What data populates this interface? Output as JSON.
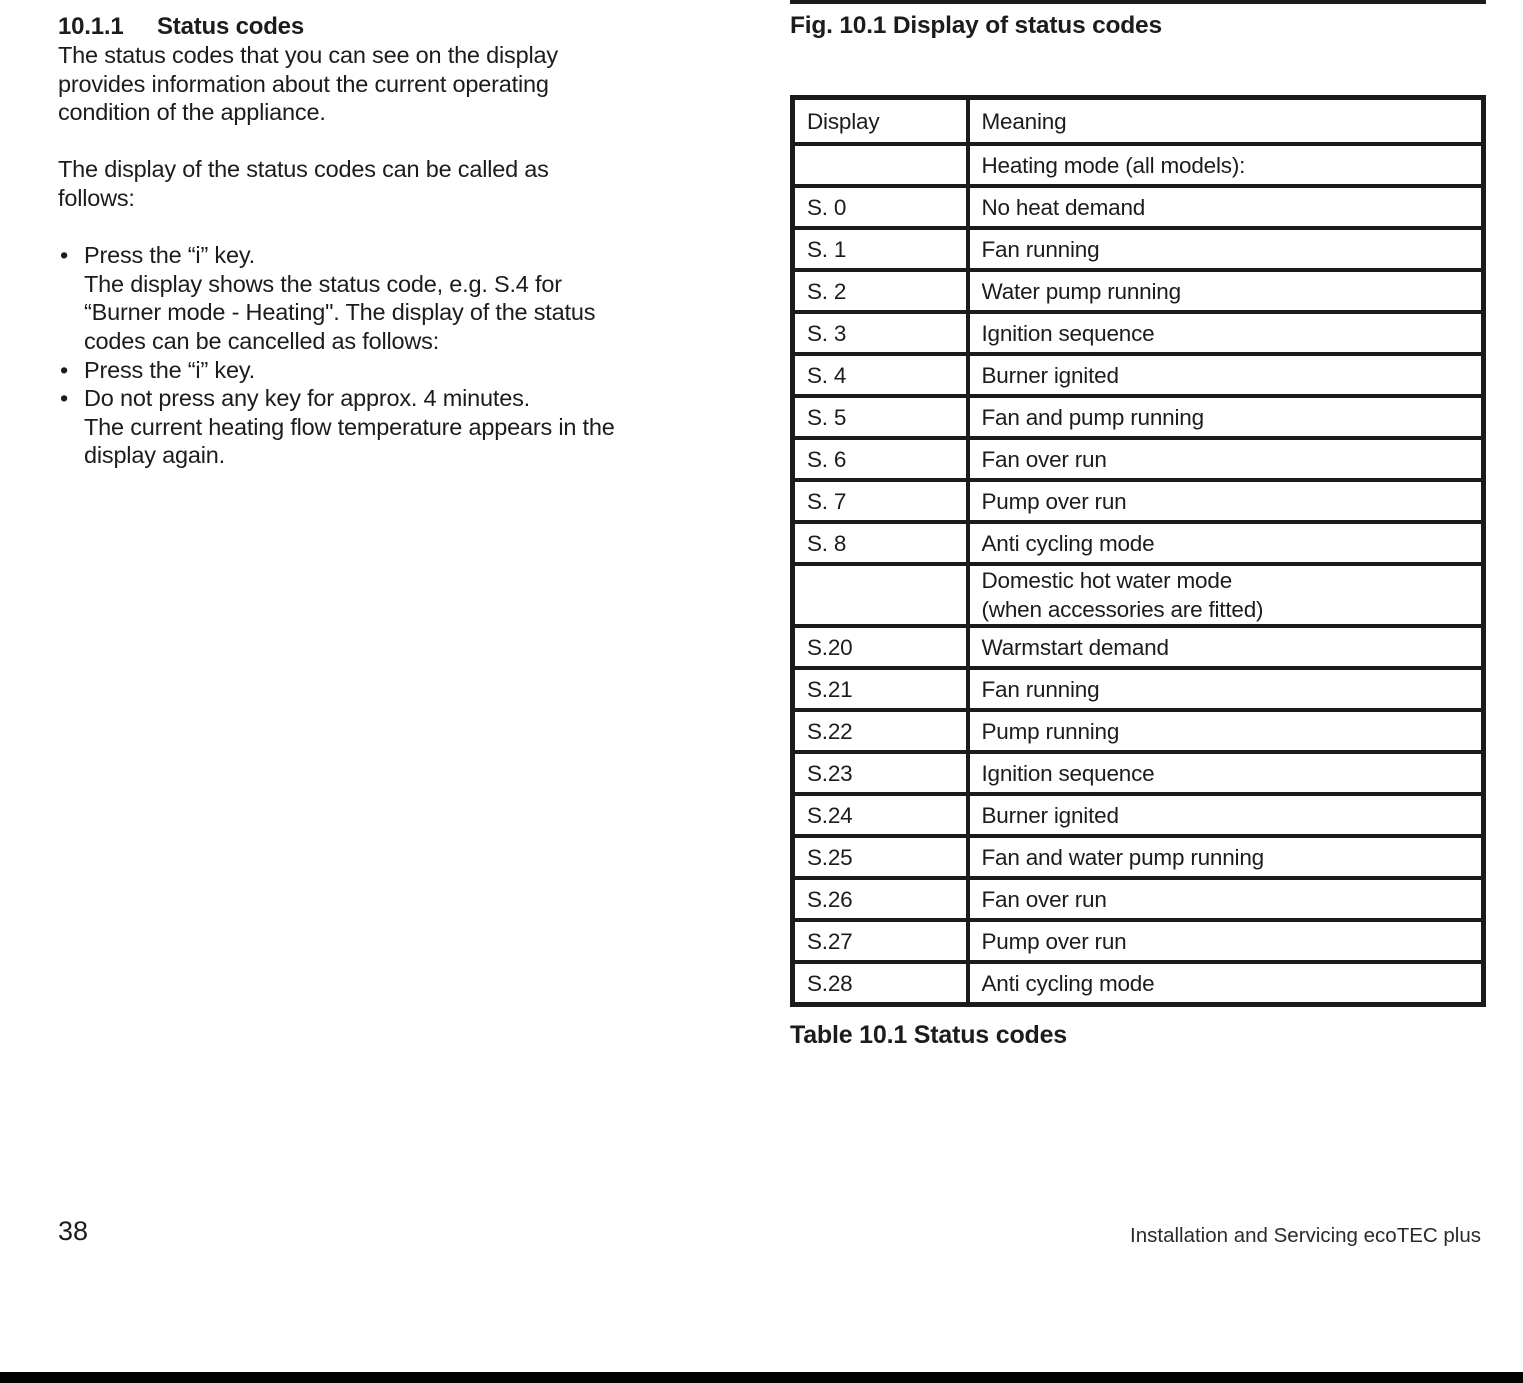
{
  "left_column": {
    "section_number": "10.1.1",
    "section_title": "Status codes",
    "paragraphs": [
      "The status codes that you can see on the display\nprovides information about the current operating\ncondition of the appliance.",
      "The display of the status codes can be called as\nfollows:"
    ],
    "bullets": [
      "Press the “i” key.\nThe display shows the status code, e.g. S.4 for\n“Burner mode - Heating\". The display of the status\ncodes can be cancelled as follows:",
      "Press the “i” key.",
      "Do not press any key for approx. 4 minutes.\nThe current heating flow temperature appears in the\ndisplay again."
    ]
  },
  "right_column": {
    "figure_caption": "Fig. 10.1 Display of status codes",
    "table": {
      "headers": [
        "Display",
        "Meaning"
      ],
      "rows": [
        {
          "display": "",
          "meaning": "Heating mode (all models):"
        },
        {
          "display": "S. 0",
          "meaning": "No heat demand"
        },
        {
          "display": "S. 1",
          "meaning": "Fan running"
        },
        {
          "display": "S. 2",
          "meaning": "Water pump running"
        },
        {
          "display": "S. 3",
          "meaning": "Ignition sequence"
        },
        {
          "display": "S. 4",
          "meaning": "Burner ignited"
        },
        {
          "display": "S. 5",
          "meaning": "Fan and pump running"
        },
        {
          "display": "S. 6",
          "meaning": "Fan over run"
        },
        {
          "display": "S. 7",
          "meaning": "Pump over run"
        },
        {
          "display": "S. 8",
          "meaning": "Anti cycling mode"
        },
        {
          "display": "",
          "meaning": "Domestic hot water mode\n(when accessories are fitted)"
        },
        {
          "display": "S.20",
          "meaning": "Warmstart demand"
        },
        {
          "display": "S.21",
          "meaning": "Fan running"
        },
        {
          "display": "S.22",
          "meaning": "Pump running"
        },
        {
          "display": "S.23",
          "meaning": "Ignition sequence"
        },
        {
          "display": "S.24",
          "meaning": "Burner ignited"
        },
        {
          "display": "S.25",
          "meaning": "Fan and water pump running"
        },
        {
          "display": "S.26",
          "meaning": "Fan over run"
        },
        {
          "display": "S.27",
          "meaning": "Pump over run"
        },
        {
          "display": "S.28",
          "meaning": "Anti cycling mode"
        }
      ]
    },
    "table_caption": "Table 10.1 Status codes"
  },
  "footer": {
    "page_number": "38",
    "right_text": "Installation and Servicing ecoTEC plus"
  }
}
